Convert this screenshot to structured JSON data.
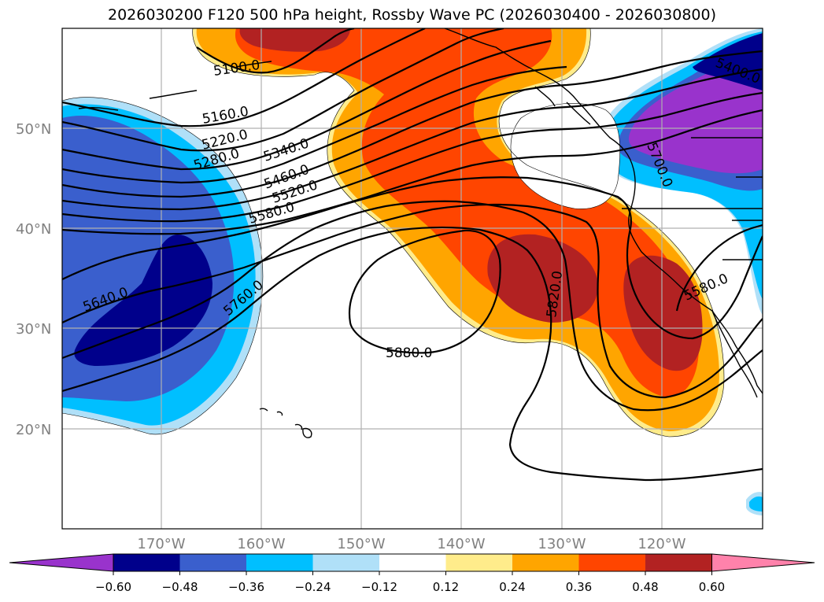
{
  "title": "2026030200 F120 500 hPa height, Rossby Wave PC (2026030400 - 2026030800)",
  "map": {
    "lat_labels": [
      "50°N",
      "40°N",
      "30°N",
      "20°N"
    ],
    "lon_labels": [
      "170°W",
      "160°W",
      "150°W",
      "140°W",
      "130°W",
      "120°W"
    ],
    "contour_labels": [
      "5100.0",
      "5160.0",
      "5220.0",
      "5280.0",
      "5340.0",
      "5460.0",
      "5520.0",
      "5580.0",
      "5640.0",
      "5760.0",
      "5880.0",
      "5820.0",
      "5700.0",
      "5400.0",
      "5580.0"
    ],
    "colors": {
      "neg_extreme": "#9933cc",
      "neg_strong": "#00008b",
      "neg_mid": "#3a5fcd",
      "neg_weak": "#00bfff",
      "neg_faint": "#b0e0f8",
      "pos_faint": "#ffec8b",
      "pos_weak": "#ffa500",
      "pos_mid": "#ff4500",
      "pos_strong": "#b22222",
      "pos_extreme": "#ff82ab"
    }
  },
  "colorbar": {
    "ticks": [
      "−0.60",
      "−0.48",
      "−0.36",
      "−0.24",
      "−0.12",
      "0.12",
      "0.24",
      "0.36",
      "0.48",
      "0.60"
    ],
    "segments": [
      "#9933cc",
      "#00008b",
      "#3a5fcd",
      "#00bfff",
      "#b0e0f8",
      "#ffffff",
      "#ffec8b",
      "#ffa500",
      "#ff4500",
      "#b22222",
      "#ff82ab"
    ]
  }
}
